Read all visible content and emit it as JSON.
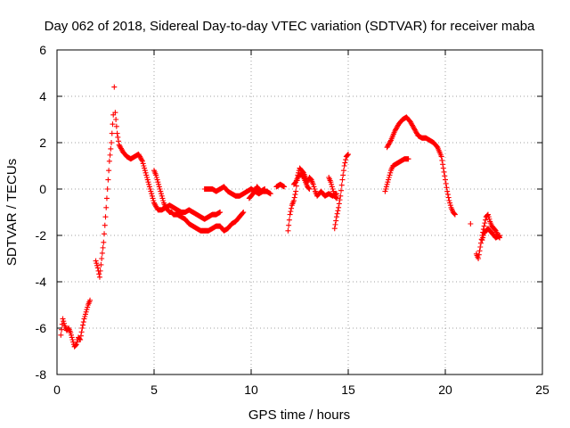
{
  "chart_data": {
    "type": "scatter",
    "title": "Day 062 of 2018, Sidereal Day-to-day VTEC variation (SDTVAR) for receiver maba",
    "xlabel": "GPS time / hours",
    "ylabel": "SDTVAR / TECUs",
    "xlim": [
      0,
      25
    ],
    "ylim": [
      -8,
      6
    ],
    "x_ticks": [
      0,
      5,
      10,
      15,
      20,
      25
    ],
    "y_ticks": [
      -8,
      -6,
      -4,
      -2,
      0,
      2,
      4,
      6
    ],
    "x_tick_labels": [
      "0",
      "5",
      "10",
      "15",
      "20",
      "25"
    ],
    "y_tick_labels": [
      "-8",
      "-6",
      "-4",
      "-2",
      "0",
      "2",
      "4",
      "6"
    ],
    "grid": true,
    "marker": "+",
    "color": "#ff0000",
    "series": [
      {
        "name": "SDTVAR",
        "segments": [
          [
            [
              0.2,
              -6.3
            ],
            [
              0.3,
              -5.6
            ],
            [
              0.4,
              -5.9
            ],
            [
              0.5,
              -6.1
            ],
            [
              0.6,
              -6.0
            ],
            [
              0.7,
              -6.2
            ],
            [
              0.8,
              -6.5
            ],
            [
              0.9,
              -6.8
            ],
            [
              1.0,
              -6.7
            ],
            [
              1.1,
              -6.4
            ],
            [
              1.2,
              -6.5
            ],
            [
              1.3,
              -6.0
            ],
            [
              1.4,
              -5.6
            ],
            [
              1.5,
              -5.3
            ],
            [
              1.6,
              -5.0
            ],
            [
              1.7,
              -4.8
            ]
          ],
          [
            [
              2.0,
              -3.1
            ],
            [
              2.1,
              -3.4
            ],
            [
              2.2,
              -3.8
            ],
            [
              2.3,
              -3.0
            ],
            [
              2.4,
              -2.3
            ],
            [
              2.5,
              -1.2
            ],
            [
              2.6,
              0.0
            ],
            [
              2.7,
              1.2
            ],
            [
              2.8,
              2.0
            ],
            [
              2.9,
              3.2
            ],
            [
              2.95,
              4.4
            ],
            [
              3.0,
              3.3
            ],
            [
              3.1,
              2.4
            ],
            [
              3.2,
              1.9
            ],
            [
              3.4,
              1.6
            ],
            [
              3.6,
              1.4
            ],
            [
              3.8,
              1.3
            ],
            [
              4.0,
              1.4
            ],
            [
              4.2,
              1.5
            ],
            [
              4.4,
              1.2
            ],
            [
              4.6,
              0.6
            ],
            [
              4.8,
              0.0
            ],
            [
              5.0,
              -0.6
            ],
            [
              5.2,
              -0.9
            ],
            [
              5.4,
              -0.9
            ],
            [
              5.6,
              -0.8
            ],
            [
              5.8,
              -0.7
            ],
            [
              6.0,
              -0.8
            ],
            [
              6.2,
              -0.9
            ],
            [
              6.4,
              -1.0
            ],
            [
              6.6,
              -1.0
            ],
            [
              6.8,
              -0.9
            ],
            [
              7.0,
              -1.0
            ],
            [
              7.2,
              -1.1
            ],
            [
              7.4,
              -1.2
            ],
            [
              7.6,
              -1.3
            ],
            [
              7.8,
              -1.2
            ],
            [
              8.0,
              -1.1
            ],
            [
              8.2,
              -1.1
            ],
            [
              8.4,
              -1.0
            ]
          ],
          [
            [
              5.0,
              0.8
            ],
            [
              5.1,
              0.6
            ],
            [
              5.2,
              0.3
            ],
            [
              5.3,
              0.0
            ],
            [
              5.4,
              -0.3
            ],
            [
              5.5,
              -0.6
            ],
            [
              5.6,
              -0.8
            ],
            [
              5.7,
              -0.9
            ],
            [
              5.8,
              -1.0
            ],
            [
              5.9,
              -1.0
            ],
            [
              6.0,
              -1.1
            ],
            [
              6.2,
              -1.1
            ],
            [
              6.4,
              -1.2
            ],
            [
              6.6,
              -1.3
            ],
            [
              6.8,
              -1.5
            ],
            [
              7.0,
              -1.6
            ],
            [
              7.2,
              -1.7
            ],
            [
              7.4,
              -1.8
            ],
            [
              7.6,
              -1.8
            ],
            [
              7.8,
              -1.8
            ],
            [
              8.0,
              -1.7
            ],
            [
              8.2,
              -1.6
            ],
            [
              8.4,
              -1.6
            ],
            [
              8.6,
              -1.8
            ],
            [
              8.8,
              -1.7
            ],
            [
              9.0,
              -1.5
            ],
            [
              9.2,
              -1.4
            ],
            [
              9.4,
              -1.2
            ],
            [
              9.6,
              -1.0
            ]
          ],
          [
            [
              7.6,
              0.0
            ],
            [
              7.8,
              0.0
            ],
            [
              8.0,
              0.0
            ],
            [
              8.2,
              -0.1
            ],
            [
              8.4,
              0.0
            ],
            [
              8.6,
              0.1
            ],
            [
              8.8,
              -0.1
            ],
            [
              9.0,
              -0.2
            ],
            [
              9.2,
              -0.3
            ],
            [
              9.4,
              -0.3
            ],
            [
              9.6,
              -0.2
            ],
            [
              9.8,
              -0.1
            ],
            [
              10.0,
              0.0
            ],
            [
              10.2,
              -0.1
            ],
            [
              10.4,
              -0.2
            ],
            [
              10.6,
              -0.1
            ],
            [
              10.8,
              -0.1
            ],
            [
              11.0,
              -0.2
            ]
          ],
          [
            [
              9.9,
              -0.4
            ],
            [
              10.1,
              -0.2
            ],
            [
              10.3,
              0.1
            ],
            [
              10.5,
              -0.1
            ],
            [
              10.7,
              0.0
            ]
          ],
          [
            [
              11.3,
              0.1
            ],
            [
              11.5,
              0.2
            ],
            [
              11.7,
              0.1
            ]
          ],
          [
            [
              11.9,
              -1.8
            ],
            [
              12.0,
              -1.1
            ],
            [
              12.1,
              -0.7
            ],
            [
              12.2,
              -0.5
            ],
            [
              12.3,
              -0.1
            ],
            [
              12.4,
              0.6
            ],
            [
              12.5,
              0.9
            ],
            [
              12.6,
              0.8
            ],
            [
              12.7,
              0.7
            ],
            [
              12.8,
              0.5
            ],
            [
              12.9,
              0.3
            ],
            [
              13.0,
              0.5
            ],
            [
              13.1,
              0.4
            ],
            [
              13.2,
              0.2
            ],
            [
              13.3,
              -0.1
            ],
            [
              13.4,
              -0.3
            ],
            [
              13.5,
              -0.2
            ],
            [
              13.6,
              -0.1
            ],
            [
              13.7,
              -0.2
            ],
            [
              13.8,
              -0.3
            ],
            [
              14.0,
              -0.2
            ],
            [
              14.2,
              -0.3
            ],
            [
              14.4,
              -0.2
            ]
          ],
          [
            [
              12.2,
              0.2
            ],
            [
              12.3,
              0.3
            ],
            [
              12.4,
              0.5
            ],
            [
              12.5,
              0.6
            ],
            [
              12.6,
              0.6
            ],
            [
              12.7,
              0.5
            ],
            [
              12.8,
              0.3
            ],
            [
              12.9,
              0.1
            ],
            [
              13.0,
              0.0
            ]
          ],
          [
            [
              14.3,
              -1.7
            ],
            [
              14.4,
              -1.2
            ],
            [
              14.5,
              -0.8
            ],
            [
              14.6,
              -0.3
            ],
            [
              14.7,
              0.4
            ],
            [
              14.8,
              1.0
            ],
            [
              14.9,
              1.4
            ],
            [
              15.0,
              1.5
            ]
          ],
          [
            [
              14.0,
              0.5
            ],
            [
              14.1,
              0.3
            ],
            [
              14.2,
              0.0
            ],
            [
              14.3,
              -0.3
            ],
            [
              14.4,
              -0.4
            ]
          ],
          [
            [
              16.9,
              -0.1
            ],
            [
              17.0,
              0.2
            ],
            [
              17.1,
              0.5
            ],
            [
              17.2,
              0.8
            ],
            [
              17.3,
              1.0
            ],
            [
              17.5,
              1.1
            ],
            [
              17.7,
              1.2
            ],
            [
              17.9,
              1.3
            ],
            [
              18.1,
              1.3
            ]
          ],
          [
            [
              17.0,
              1.8
            ],
            [
              17.2,
              2.1
            ],
            [
              17.4,
              2.5
            ],
            [
              17.6,
              2.8
            ],
            [
              17.8,
              3.0
            ],
            [
              18.0,
              3.1
            ],
            [
              18.2,
              2.9
            ],
            [
              18.4,
              2.6
            ],
            [
              18.6,
              2.3
            ],
            [
              18.8,
              2.2
            ],
            [
              19.0,
              2.2
            ],
            [
              19.2,
              2.1
            ],
            [
              19.4,
              2.0
            ],
            [
              19.6,
              1.8
            ],
            [
              19.8,
              1.4
            ],
            [
              19.9,
              0.9
            ],
            [
              20.0,
              0.4
            ],
            [
              20.1,
              -0.1
            ],
            [
              20.2,
              -0.5
            ],
            [
              20.3,
              -0.8
            ],
            [
              20.4,
              -1.0
            ],
            [
              20.5,
              -1.1
            ]
          ],
          [
            [
              21.3,
              -1.5
            ]
          ],
          [
            [
              21.6,
              -2.8
            ],
            [
              21.7,
              -3.0
            ],
            [
              21.8,
              -2.5
            ],
            [
              21.9,
              -2.0
            ],
            [
              22.0,
              -1.6
            ],
            [
              22.1,
              -1.2
            ],
            [
              22.2,
              -1.1
            ],
            [
              22.3,
              -1.4
            ],
            [
              22.4,
              -1.6
            ],
            [
              22.5,
              -1.7
            ],
            [
              22.6,
              -1.8
            ],
            [
              22.7,
              -2.0
            ],
            [
              22.8,
              -2.1
            ]
          ],
          [
            [
              21.9,
              -2.2
            ],
            [
              22.0,
              -1.9
            ],
            [
              22.2,
              -1.7
            ],
            [
              22.4,
              -1.9
            ],
            [
              22.6,
              -2.1
            ],
            [
              22.8,
              -2.0
            ]
          ]
        ]
      }
    ]
  }
}
